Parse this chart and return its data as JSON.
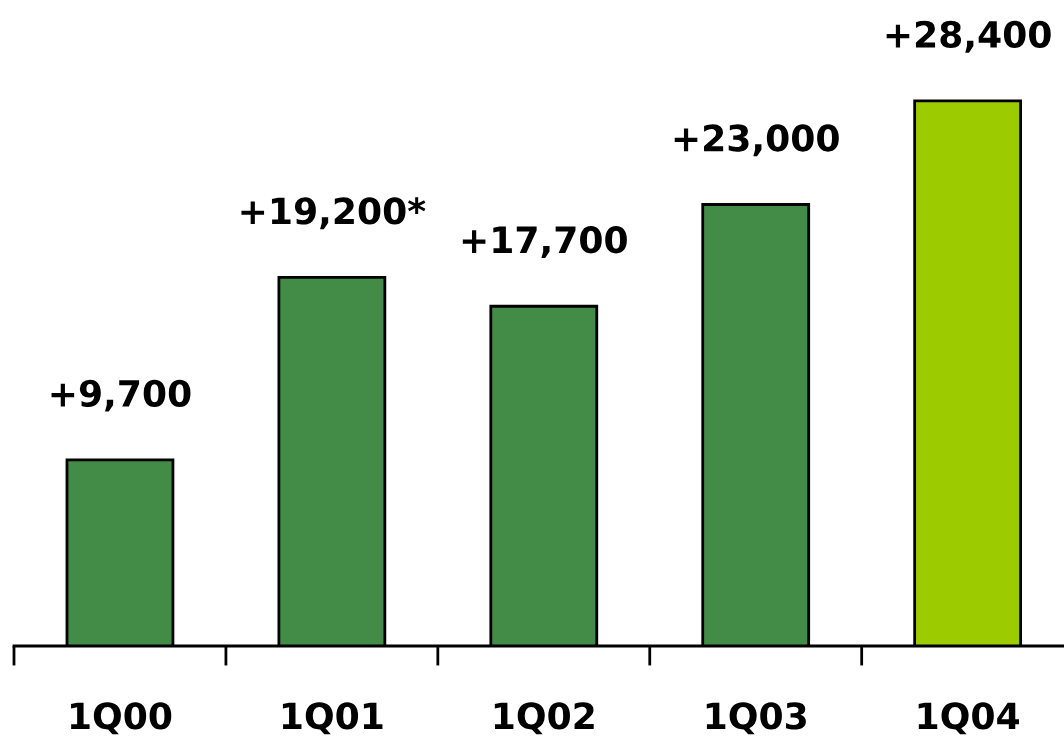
{
  "chart_data": {
    "type": "bar",
    "categories": [
      "1Q00",
      "1Q01",
      "1Q02",
      "1Q03",
      "1Q04"
    ],
    "values": [
      9700,
      19200,
      17700,
      23000,
      28400
    ],
    "colors": [
      "#428c47",
      "#428c47",
      "#428c47",
      "#428c47",
      "#9ccc00"
    ],
    "value_labels": [
      "+9,700",
      "+19,200*",
      "+17,700",
      "+23,000",
      "+28,400"
    ],
    "tick_labels": "x",
    "grid": false
  }
}
